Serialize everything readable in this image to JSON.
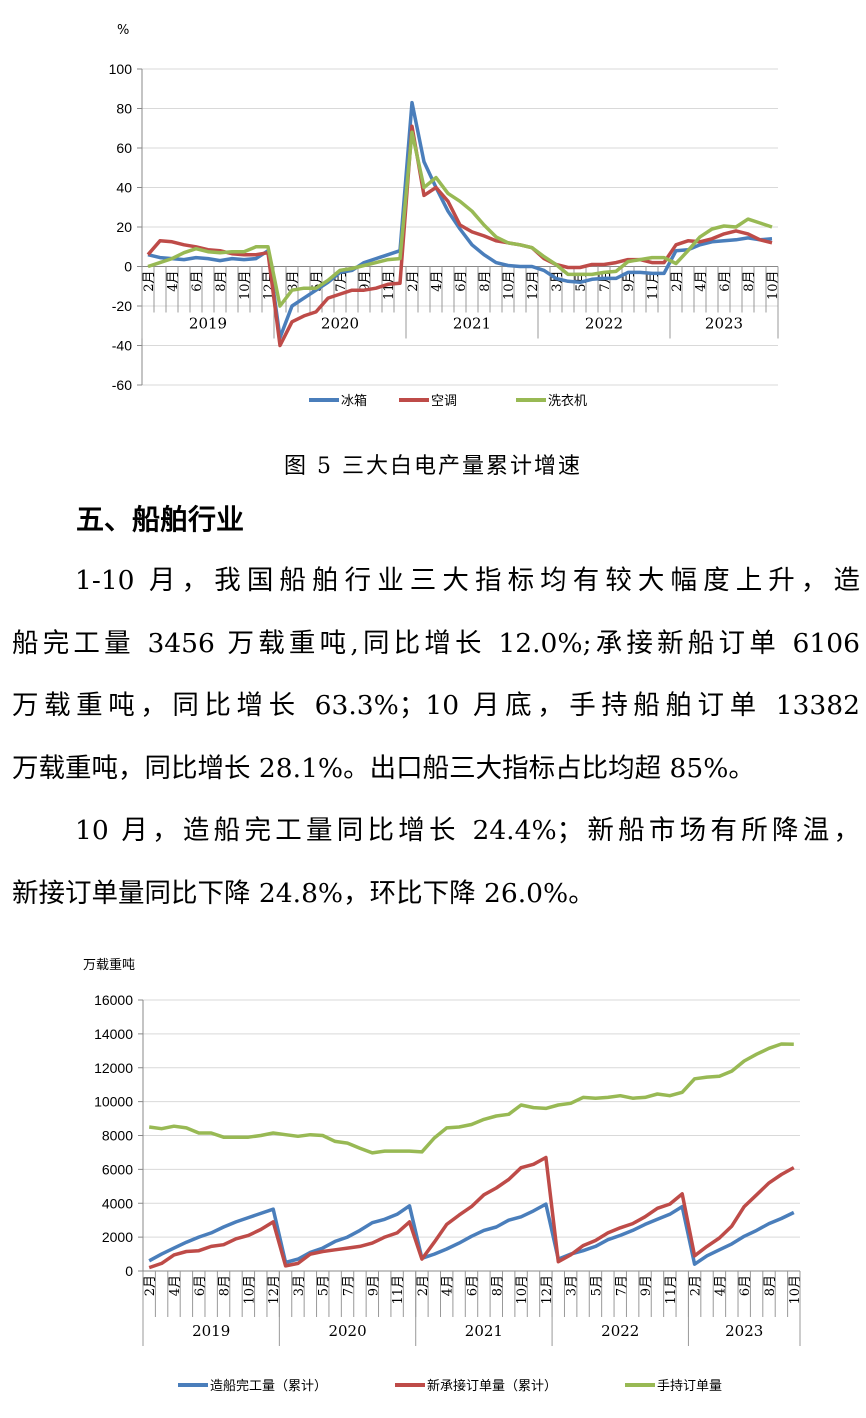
{
  "chart_data": [
    {
      "type": "line",
      "ylabel": "%",
      "ylim": [
        -60,
        100
      ],
      "yticks": [
        100,
        80,
        60,
        40,
        20,
        0,
        -20,
        -40,
        -60
      ],
      "grid": true,
      "legend": "bottom",
      "years": [
        "2019",
        "2020",
        "2021",
        "2022",
        "2023"
      ],
      "months_per_year": [
        11,
        11,
        11,
        11,
        9
      ],
      "categories": [
        "2月",
        "3月",
        "4月",
        "5月",
        "6月",
        "7月",
        "8月",
        "9月",
        "10月",
        "11月",
        "12月",
        "2月",
        "3月",
        "4月",
        "5月",
        "6月",
        "7月",
        "8月",
        "9月",
        "10月",
        "11月",
        "12月",
        "2月",
        "3月",
        "4月",
        "5月",
        "6月",
        "7月",
        "8月",
        "9月",
        "10月",
        "11月",
        "12月",
        "2月",
        "3月",
        "4月",
        "5月",
        "6月",
        "7月",
        "8月",
        "9月",
        "10月",
        "11月",
        "12月",
        "2月",
        "3月",
        "4月",
        "5月",
        "6月",
        "7月",
        "8月",
        "9月",
        "10月"
      ],
      "series": [
        {
          "name": "冰箱",
          "color": "#4a7ebb",
          "values": [
            6,
            4.5,
            4,
            3.5,
            4.5,
            4,
            3,
            4,
            3.5,
            4,
            8,
            -36,
            -20,
            -16,
            -12,
            -8,
            -3,
            -2,
            2,
            4,
            6,
            8,
            83,
            53,
            40,
            28,
            19,
            11,
            6,
            2,
            0.5,
            0,
            0,
            -2,
            -6,
            -7.5,
            -8,
            -6.5,
            -6,
            -6,
            -3,
            -3,
            -3.5,
            -3.5,
            8,
            8.5,
            11,
            12.5,
            13,
            13.5,
            14.5,
            13.5,
            14
          ]
        },
        {
          "name": "空调",
          "color": "#be4b48",
          "values": [
            6,
            13,
            12.5,
            11,
            10,
            8.5,
            8,
            6.5,
            6,
            6,
            7,
            -40,
            -28,
            -25,
            -23,
            -16,
            -14,
            -12,
            -12,
            -11,
            -9,
            -8.5,
            71,
            36,
            40,
            33,
            21,
            17.5,
            15.5,
            13,
            12,
            11,
            9.5,
            4,
            1,
            -0.5,
            -0.5,
            1,
            1,
            2,
            3.5,
            3.5,
            2,
            2,
            11,
            13,
            12.5,
            14,
            16.5,
            18,
            16.5,
            13.5,
            12
          ]
        },
        {
          "name": "洗衣机",
          "color": "#98b954",
          "values": [
            0,
            2,
            4,
            7,
            9,
            7.5,
            7,
            7.5,
            7.5,
            10,
            10,
            -20,
            -12,
            -11,
            -11,
            -7,
            -2,
            -1,
            0.5,
            2,
            3.5,
            4,
            68,
            40,
            45,
            37,
            33,
            28,
            21,
            15,
            12,
            11,
            9.5,
            5,
            1,
            -4,
            -4,
            -4,
            -3,
            -2.5,
            2.5,
            3.5,
            4.5,
            4.5,
            1.5,
            8,
            15,
            19,
            20.5,
            20,
            24,
            22,
            20
          ]
        }
      ]
    },
    {
      "type": "line",
      "ylabel": "万载重吨",
      "ylim": [
        0,
        16000
      ],
      "yticks": [
        16000,
        14000,
        12000,
        10000,
        8000,
        6000,
        4000,
        2000,
        0
      ],
      "grid": true,
      "legend": "bottom",
      "years": [
        "2019",
        "2020",
        "2021",
        "2022",
        "2023"
      ],
      "months_per_year": [
        11,
        11,
        11,
        11,
        9
      ],
      "categories": [
        "2月",
        "3月",
        "4月",
        "5月",
        "6月",
        "7月",
        "8月",
        "9月",
        "10月",
        "11月",
        "12月",
        "2月",
        "3月",
        "4月",
        "5月",
        "6月",
        "7月",
        "8月",
        "9月",
        "10月",
        "11月",
        "12月",
        "2月",
        "3月",
        "4月",
        "5月",
        "6月",
        "7月",
        "8月",
        "9月",
        "10月",
        "11月",
        "12月",
        "2月",
        "3月",
        "4月",
        "5月",
        "6月",
        "7月",
        "8月",
        "9月",
        "10月",
        "11月",
        "12月",
        "2月",
        "3月",
        "4月",
        "5月",
        "6月",
        "7月",
        "8月",
        "9月",
        "10月"
      ],
      "series": [
        {
          "name": "造船完工量（累计）",
          "color": "#4a7ebb",
          "values": [
            600,
            1000,
            1350,
            1700,
            2000,
            2250,
            2600,
            2900,
            3150,
            3400,
            3650,
            500,
            700,
            1100,
            1350,
            1750,
            2000,
            2400,
            2850,
            3050,
            3350,
            3850,
            750,
            1000,
            1300,
            1650,
            2050,
            2400,
            2600,
            3000,
            3200,
            3550,
            3950,
            700,
            1000,
            1200,
            1450,
            1850,
            2100,
            2400,
            2750,
            3050,
            3350,
            3800,
            400,
            900,
            1250,
            1600,
            2050,
            2400,
            2800,
            3100,
            3456
          ]
        },
        {
          "name": "新承接订单量（累计）",
          "color": "#be4b48",
          "values": [
            200,
            450,
            950,
            1150,
            1200,
            1450,
            1550,
            1900,
            2100,
            2450,
            2900,
            300,
            450,
            1000,
            1150,
            1250,
            1350,
            1450,
            1650,
            2000,
            2250,
            2900,
            700,
            1700,
            2750,
            3300,
            3800,
            4500,
            4900,
            5400,
            6100,
            6300,
            6700,
            550,
            950,
            1500,
            1800,
            2250,
            2550,
            2800,
            3200,
            3700,
            3950,
            4550,
            900,
            1450,
            1950,
            2650,
            3800,
            4500,
            5200,
            5700,
            6106
          ]
        },
        {
          "name": "手持订单量",
          "color": "#98b954",
          "values": [
            8500,
            8400,
            8550,
            8450,
            8150,
            8150,
            7900,
            7900,
            7900,
            8000,
            8150,
            8050,
            7950,
            8050,
            8000,
            7650,
            7550,
            7250,
            6970,
            7080,
            7080,
            7080,
            7030,
            7850,
            8450,
            8500,
            8650,
            8950,
            9150,
            9250,
            9800,
            9650,
            9600,
            9800,
            9900,
            10250,
            10200,
            10250,
            10350,
            10200,
            10250,
            10450,
            10350,
            10550,
            11350,
            11450,
            11500,
            11800,
            12400,
            12800,
            13150,
            13400,
            13382
          ]
        }
      ]
    }
  ],
  "caption": "图 5  三大白电产量累计增速",
  "heading": "五、船舶行业",
  "paragraphs": [
    [
      "1-10 月，我国船舶行业三大指标均有较大幅度上升，造",
      "船完工量 3456 万载重吨,同比增长 12.0%;承接新船订单 6106",
      "万载重吨，同比增长 63.3%；10 月底，手持船舶订单 13382",
      "万载重吨，同比增长 28.1%。出口船三大指标占比均超 85%。"
    ],
    [
      "10 月，造船完工量同比增长 24.4%；新船市场有所降温，",
      "新接订单量同比下降 24.8%，环比下降 26.0%。"
    ]
  ]
}
